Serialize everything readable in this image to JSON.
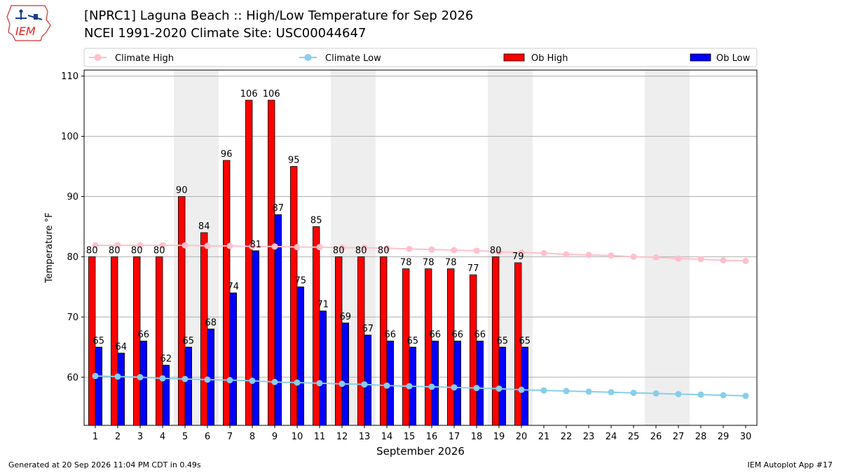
{
  "header": {
    "logo_text": "IEM",
    "title": "[NPRC1] Laguna Beach :: High/Low Temperature for Sep 2026",
    "subtitle": "NCEI 1991-2020 Climate Site: USC00044647"
  },
  "footer": {
    "generated": "Generated at 20 Sep 2026 11:04 PM CDT in 0.49s",
    "app": "IEM Autoplot App #17"
  },
  "colors": {
    "ob_high": "#ff0000",
    "ob_low": "#0000ff",
    "climate_high": "#ffc0cb",
    "climate_low": "#87ceeb",
    "weekend_shade": "#eeeeee",
    "grid": "#b0b0b0"
  },
  "chart_data": {
    "type": "bar",
    "title": "[NPRC1] Laguna Beach :: High/Low Temperature for Sep 2026",
    "xlabel": "September 2026",
    "ylabel": "Temperature °F",
    "ylim": [
      52,
      111
    ],
    "yticks": [
      60,
      70,
      80,
      90,
      100,
      110
    ],
    "grid": "horizontal",
    "legend_placement": "top",
    "days": [
      1,
      2,
      3,
      4,
      5,
      6,
      7,
      8,
      9,
      10,
      11,
      12,
      13,
      14,
      15,
      16,
      17,
      18,
      19,
      20,
      21,
      22,
      23,
      24,
      25,
      26,
      27,
      28,
      29,
      30
    ],
    "shaded_weekend_days": [
      [
        5,
        6
      ],
      [
        12,
        13
      ],
      [
        19,
        20
      ],
      [
        26,
        27
      ]
    ],
    "series": [
      {
        "name": "Climate High",
        "kind": "line",
        "values": [
          81.9,
          81.9,
          81.9,
          81.9,
          81.9,
          81.8,
          81.8,
          81.7,
          81.7,
          81.6,
          81.6,
          81.5,
          81.5,
          81.4,
          81.3,
          81.2,
          81.1,
          81.0,
          80.8,
          80.7,
          80.6,
          80.4,
          80.3,
          80.2,
          80.0,
          79.9,
          79.7,
          79.6,
          79.4,
          79.3
        ]
      },
      {
        "name": "Climate Low",
        "kind": "line",
        "values": [
          60.2,
          60.1,
          60.0,
          59.8,
          59.7,
          59.6,
          59.5,
          59.4,
          59.2,
          59.1,
          59.0,
          58.9,
          58.8,
          58.6,
          58.5,
          58.4,
          58.3,
          58.2,
          58.1,
          57.9,
          57.8,
          57.7,
          57.6,
          57.5,
          57.4,
          57.3,
          57.2,
          57.1,
          57.0,
          56.9
        ]
      },
      {
        "name": "Ob High",
        "kind": "bar",
        "values": [
          80,
          80,
          80,
          80,
          90,
          84,
          96,
          106,
          106,
          95,
          85,
          80,
          80,
          80,
          78,
          78,
          78,
          77,
          80,
          79
        ]
      },
      {
        "name": "Ob Low",
        "kind": "bar",
        "values": [
          65,
          64,
          66,
          62,
          65,
          68,
          74,
          81,
          87,
          75,
          71,
          69,
          67,
          66,
          65,
          66,
          66,
          66,
          65,
          65
        ]
      }
    ]
  }
}
